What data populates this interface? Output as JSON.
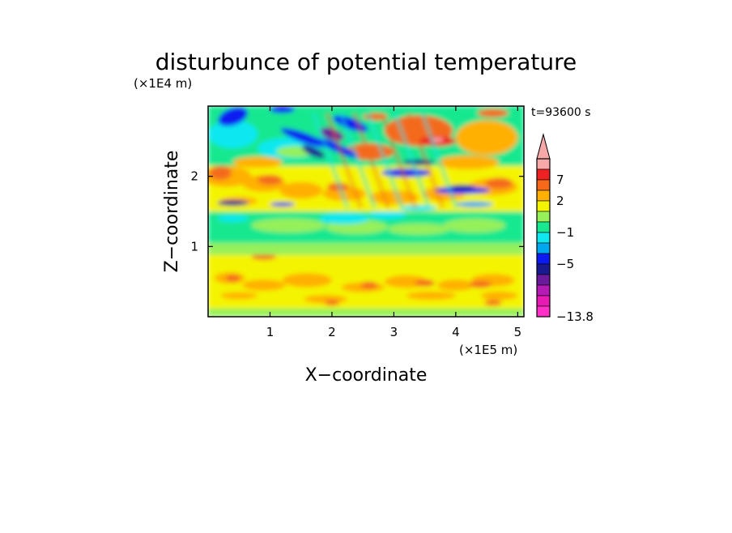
{
  "chart_data": {
    "type": "heatmap",
    "title": "disturbunce of potential temperature",
    "xlabel": "X−coordinate",
    "ylabel": "Z−coordinate",
    "x_scale_label": "(×1E5 m)",
    "y_scale_label": "(×1E4 m)",
    "time_label": "t=93600 s",
    "xlim": [
      0,
      5.1
    ],
    "ylim": [
      0,
      3.0
    ],
    "x_ticks": [
      1,
      2,
      3,
      4,
      5
    ],
    "x_tick_labels": [
      "1",
      "2",
      "3",
      "4",
      "5"
    ],
    "y_ticks": [
      1,
      2
    ],
    "y_tick_labels": [
      "1",
      "2"
    ],
    "colorbar": {
      "levels_top_to_bottom": [
        {
          "color": "#f7a8a8"
        },
        {
          "color": "#ee2222"
        },
        {
          "color": "#f46a1a"
        },
        {
          "color": "#ffb000"
        },
        {
          "color": "#f4f400"
        },
        {
          "color": "#96f05a"
        },
        {
          "color": "#18e890"
        },
        {
          "color": "#10e8f0"
        },
        {
          "color": "#00a8f0"
        },
        {
          "color": "#0a1af0"
        },
        {
          "color": "#1a1a90"
        },
        {
          "color": "#6a1a9a"
        },
        {
          "color": "#b41ab4"
        },
        {
          "color": "#e81ab4"
        },
        {
          "color": "#ff30c8"
        }
      ],
      "labels": [
        {
          "text": "7",
          "level_index": 2
        },
        {
          "text": "2",
          "level_index": 4
        },
        {
          "text": "−1",
          "level_index": 7
        },
        {
          "text": "−5",
          "level_index": 10
        },
        {
          "text": "−13.8",
          "level_index": 15
        }
      ],
      "min": -13.8
    },
    "field_description_rows": [
      {
        "z_range": [
          0.0,
          0.15
        ],
        "pattern": "yellow-green mix, scattered orange"
      },
      {
        "z_range": [
          0.15,
          0.85
        ],
        "pattern": "yellow with orange/amber patches"
      },
      {
        "z_range": [
          0.85,
          1.05
        ],
        "pattern": "yellow-green to green"
      },
      {
        "z_range": [
          1.05,
          1.5
        ],
        "pattern": "green band with cyan patches"
      },
      {
        "z_range": [
          1.5,
          2.1
        ],
        "pattern": "orange/yellow with blue streaks"
      },
      {
        "z_range": [
          2.1,
          3.0
        ],
        "pattern": "mixed blue, cyan, orange, red maximum near x=3.5"
      }
    ]
  }
}
